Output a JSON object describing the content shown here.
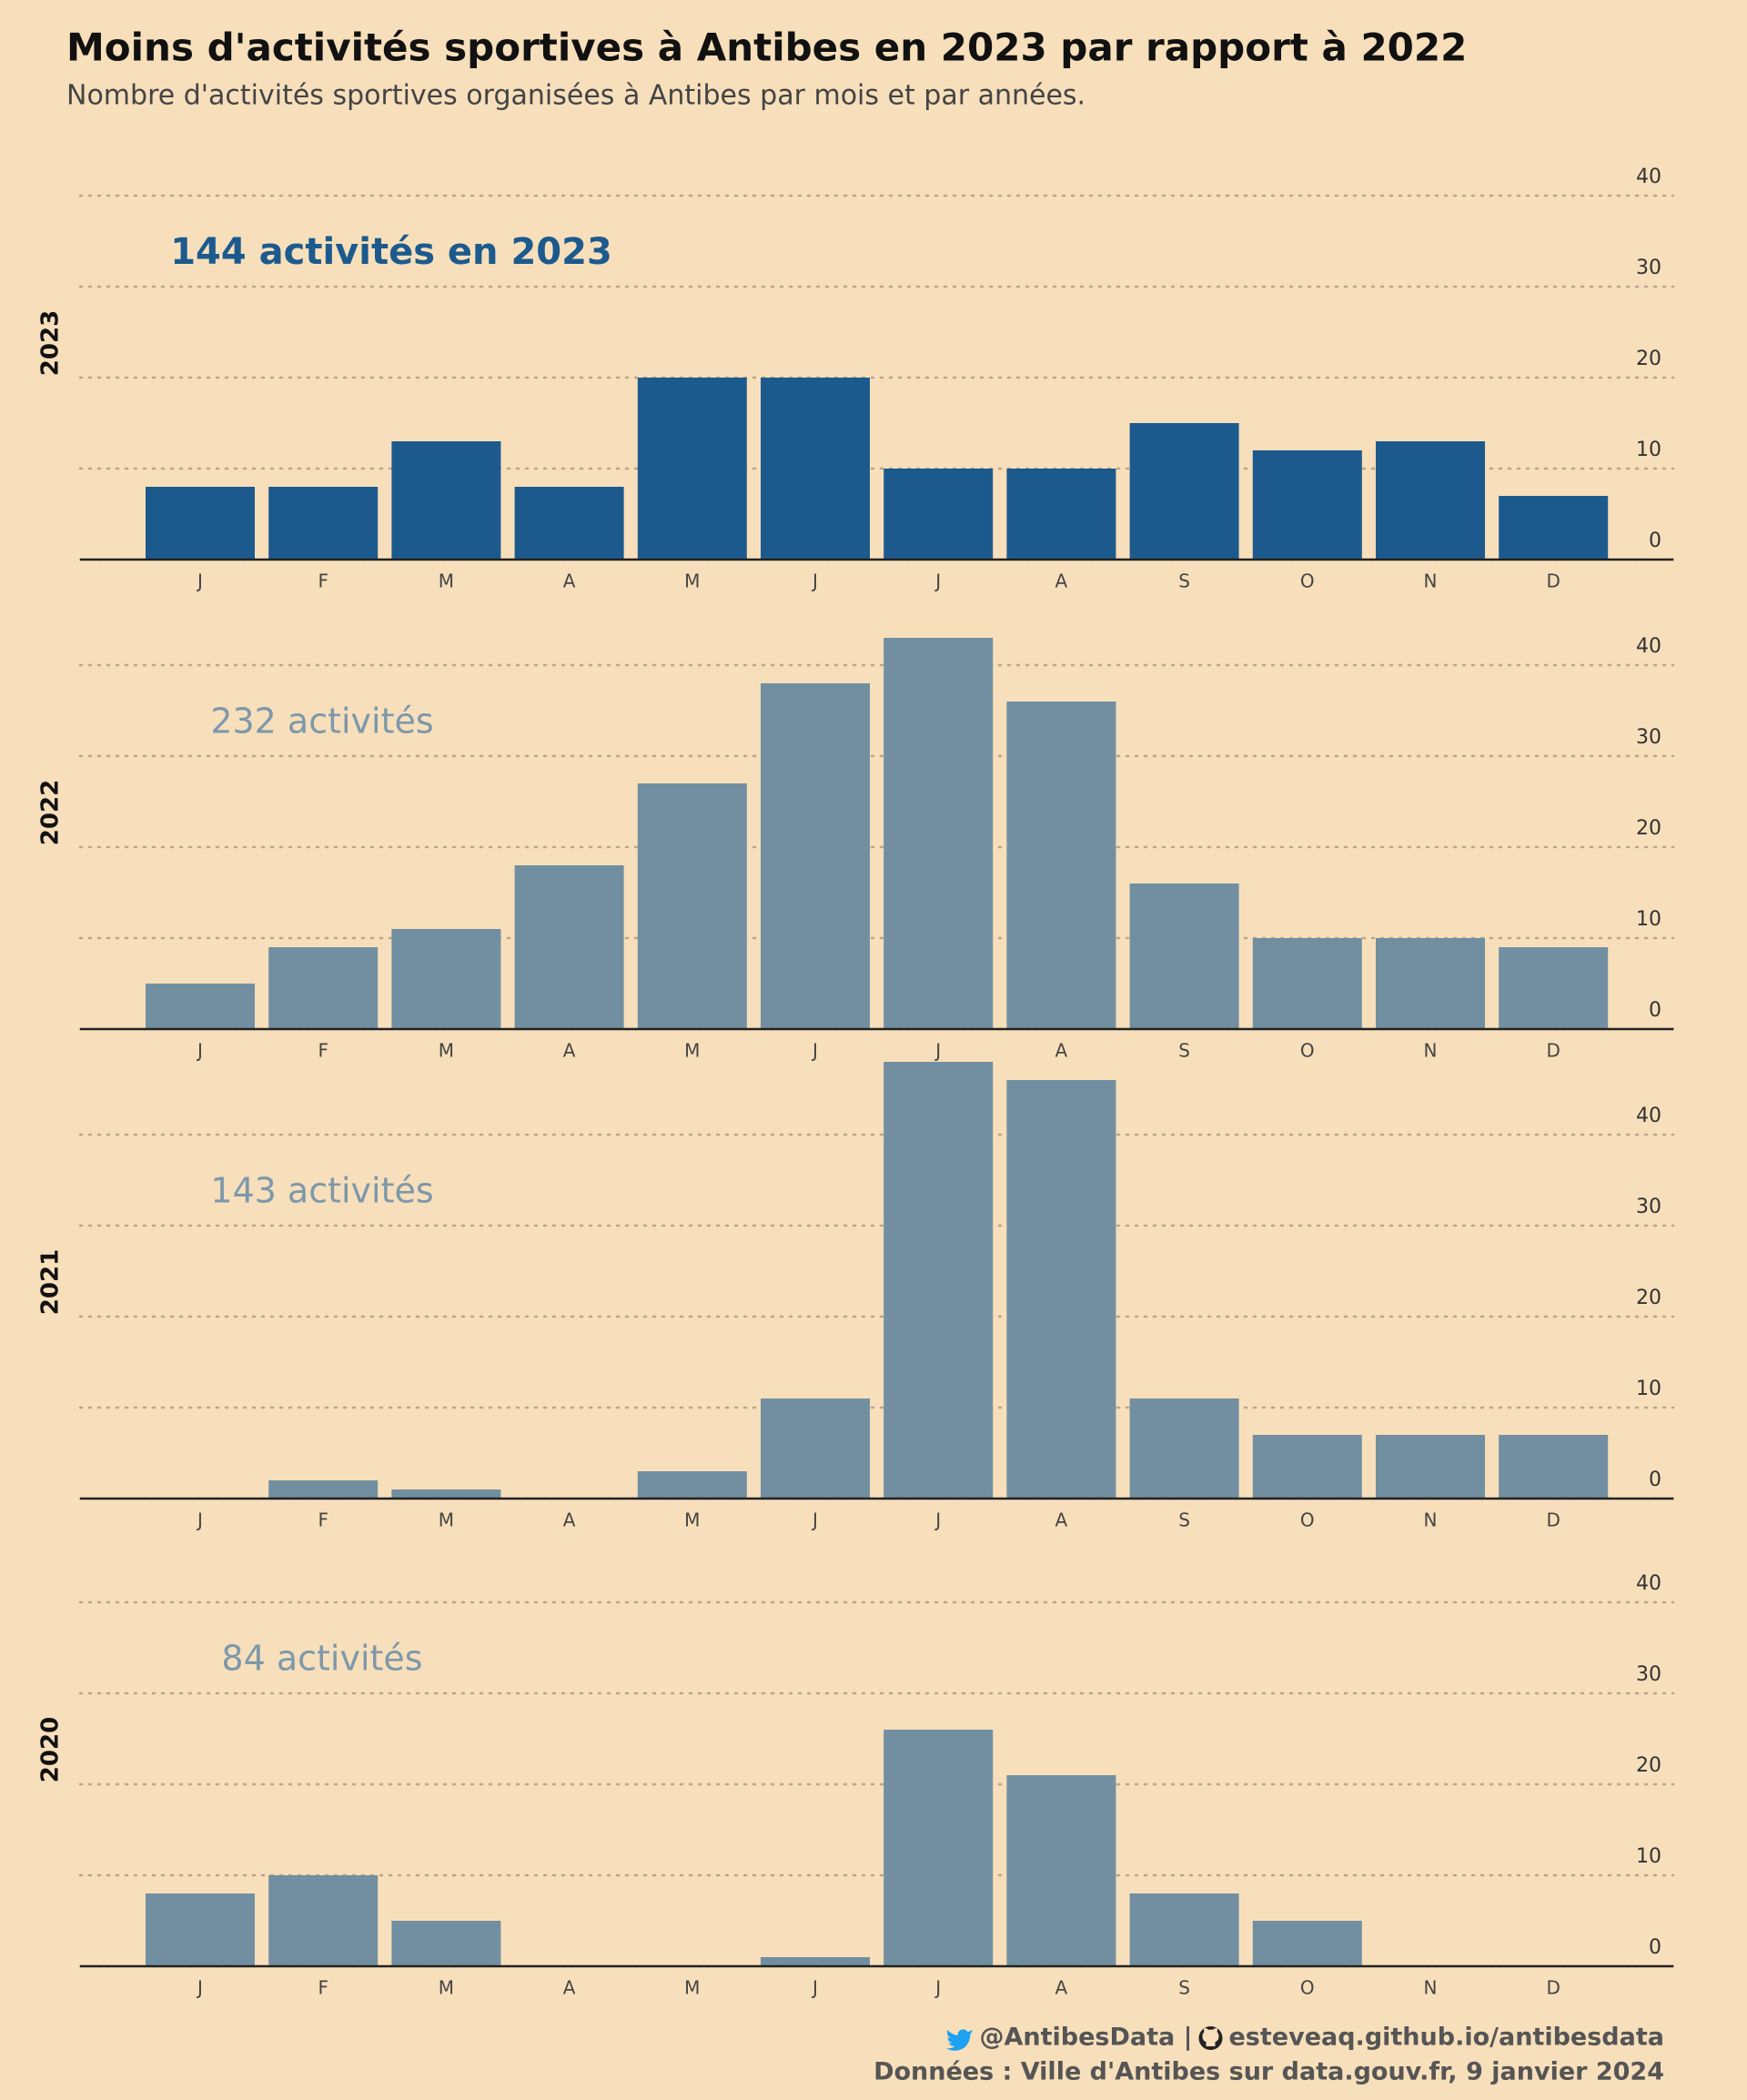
{
  "title": "Moins d'activités sportives à Antibes en 2023 par rapport à 2022",
  "subtitle": "Nombre d'activités sportives organisées à Antibes par mois et par années.",
  "caption": {
    "handle": "@AntibesData |",
    "site": "esteveaq.github.io/antibesdata",
    "source": "Données : Ville d'Antibes sur data.gouv.fr, 9 janvier 2024"
  },
  "chart_data": [
    {
      "type": "bar",
      "panel_label": "2023",
      "annotation": "144 activités en 2023",
      "highlight": true,
      "color": "#1c5a8e",
      "categories": [
        "J",
        "F",
        "M",
        "A",
        "M",
        "J",
        "J",
        "A",
        "S",
        "O",
        "N",
        "D"
      ],
      "values": [
        8,
        8,
        13,
        8,
        20,
        20,
        10,
        10,
        15,
        12,
        13,
        7
      ],
      "ylim": [
        0,
        48
      ],
      "yticks": [
        0,
        10,
        20,
        30,
        40
      ],
      "grid": true
    },
    {
      "type": "bar",
      "panel_label": "2022",
      "annotation": "232 activités",
      "highlight": false,
      "color": "#718fa1",
      "categories": [
        "J",
        "F",
        "M",
        "A",
        "M",
        "J",
        "J",
        "A",
        "S",
        "O",
        "N",
        "D"
      ],
      "values": [
        5,
        9,
        11,
        18,
        27,
        38,
        43,
        36,
        16,
        10,
        10,
        9
      ],
      "ylim": [
        0,
        48
      ],
      "yticks": [
        0,
        10,
        20,
        30,
        40
      ],
      "grid": true
    },
    {
      "type": "bar",
      "panel_label": "2021",
      "annotation": "143 activités",
      "highlight": false,
      "color": "#718fa1",
      "categories": [
        "J",
        "F",
        "M",
        "A",
        "M",
        "J",
        "J",
        "A",
        "S",
        "O",
        "N",
        "D"
      ],
      "values": [
        0,
        2,
        1,
        0,
        3,
        11,
        48,
        46,
        11,
        7,
        7,
        7
      ],
      "ylim": [
        0,
        48
      ],
      "yticks": [
        0,
        10,
        20,
        30,
        40
      ],
      "grid": true
    },
    {
      "type": "bar",
      "panel_label": "2020",
      "annotation": "84 activités",
      "highlight": false,
      "color": "#718fa1",
      "categories": [
        "J",
        "F",
        "M",
        "A",
        "M",
        "J",
        "J",
        "A",
        "S",
        "O",
        "N",
        "D"
      ],
      "values": [
        8,
        10,
        5,
        0,
        0,
        1,
        26,
        21,
        8,
        5,
        0,
        0
      ],
      "ylim": [
        0,
        48
      ],
      "yticks": [
        0,
        10,
        20,
        30,
        40
      ],
      "grid": true
    }
  ]
}
